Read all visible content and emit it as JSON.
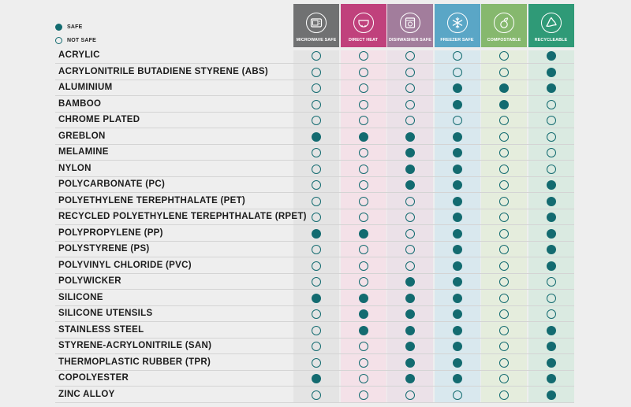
{
  "legend": {
    "safe_label": "SAFE",
    "notsafe_label": "NOT SAFE"
  },
  "colors": {
    "safe": "#136b70"
  },
  "columns": [
    {
      "label": "MICROWAVE SAFE",
      "icon": "microwave-icon",
      "header": "#707172",
      "tint": "#e4e4e4"
    },
    {
      "label": "DIRECT HEAT",
      "icon": "pan-heat-icon",
      "header": "#c0417c",
      "tint": "#f4e1e8"
    },
    {
      "label": "DISHWASHER SAFE",
      "icon": "dishwasher-icon",
      "header": "#a27d9c",
      "tint": "#ebe1e8"
    },
    {
      "label": "FREEZER SAFE",
      "icon": "snowflake-icon",
      "header": "#5aa6c6",
      "tint": "#d9e8ee"
    },
    {
      "label": "COMPOSTABLE",
      "icon": "compost-icon",
      "header": "#86b86e",
      "tint": "#e5eddd"
    },
    {
      "label": "RECYCLEABLE",
      "icon": "recycle-icon",
      "header": "#2f9a77",
      "tint": "#daeae1"
    }
  ],
  "rows": [
    {
      "name": "ACRYLIC",
      "values": [
        0,
        0,
        0,
        0,
        0,
        1
      ]
    },
    {
      "name": "ACRYLONITRILE BUTADIENE STYRENE (ABS)",
      "values": [
        0,
        0,
        0,
        0,
        0,
        1
      ]
    },
    {
      "name": "ALUMINIUM",
      "values": [
        0,
        0,
        0,
        1,
        1,
        1
      ]
    },
    {
      "name": "BAMBOO",
      "values": [
        0,
        0,
        0,
        1,
        1,
        0
      ]
    },
    {
      "name": "CHROME PLATED",
      "values": [
        0,
        0,
        0,
        0,
        0,
        0
      ]
    },
    {
      "name": "GREBLON",
      "values": [
        1,
        1,
        1,
        1,
        0,
        0
      ]
    },
    {
      "name": "MELAMINE",
      "values": [
        0,
        0,
        1,
        1,
        0,
        0
      ]
    },
    {
      "name": "NYLON",
      "values": [
        0,
        0,
        1,
        1,
        0,
        0
      ]
    },
    {
      "name": "POLYCARBONATE (PC)",
      "values": [
        0,
        0,
        1,
        1,
        0,
        1
      ]
    },
    {
      "name": "POLYETHYLENE TEREPHTHALATE (PET)",
      "values": [
        0,
        0,
        0,
        1,
        0,
        1
      ]
    },
    {
      "name": "RECYCLED POLYETHYLENE TEREPHTHALATE (RPET)",
      "values": [
        0,
        0,
        0,
        1,
        0,
        1
      ]
    },
    {
      "name": "POLYPROPYLENE (PP)",
      "values": [
        1,
        1,
        0,
        1,
        0,
        1
      ]
    },
    {
      "name": "POLYSTYRENE (PS)",
      "values": [
        0,
        0,
        0,
        1,
        0,
        1
      ]
    },
    {
      "name": "POLYVINYL CHLORIDE (PVC)",
      "values": [
        0,
        0,
        0,
        1,
        0,
        1
      ]
    },
    {
      "name": "POLYWICKER",
      "values": [
        0,
        0,
        1,
        1,
        0,
        0
      ]
    },
    {
      "name": "SILICONE",
      "values": [
        1,
        1,
        1,
        1,
        0,
        0
      ]
    },
    {
      "name": "SILICONE UTENSILS",
      "values": [
        0,
        1,
        1,
        1,
        0,
        0
      ]
    },
    {
      "name": "STAINLESS STEEL",
      "values": [
        0,
        1,
        1,
        1,
        0,
        1
      ]
    },
    {
      "name": "STYRENE-ACRYLONITRILE (SAN)",
      "values": [
        0,
        0,
        1,
        1,
        0,
        1
      ]
    },
    {
      "name": "THERMOPLASTIC RUBBER (TPR)",
      "values": [
        0,
        0,
        1,
        1,
        0,
        1
      ]
    },
    {
      "name": "COPOLYESTER",
      "values": [
        1,
        0,
        1,
        1,
        0,
        1
      ]
    },
    {
      "name": "ZINC ALLOY",
      "values": [
        0,
        0,
        0,
        0,
        0,
        1
      ]
    }
  ]
}
